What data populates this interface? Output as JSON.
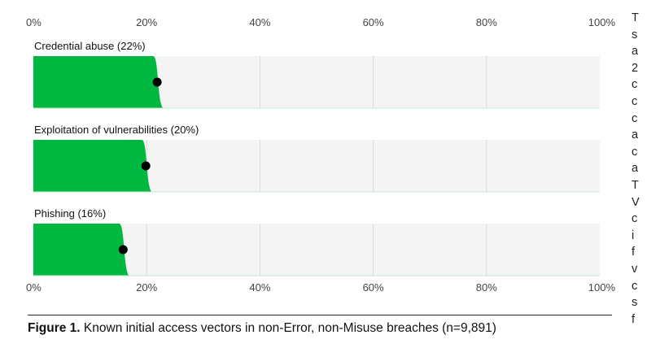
{
  "chart_data": {
    "type": "bar",
    "orientation": "horizontal",
    "categories": [
      "Credential abuse (22%)",
      "Exploitation of vulnerabilities (20%)",
      "Phishing (16%)"
    ],
    "values": [
      22,
      20,
      16
    ],
    "xlim": [
      0,
      100
    ],
    "x_ticks": [
      "0%",
      "20%",
      "40%",
      "60%",
      "80%",
      "100%"
    ],
    "x_tick_values": [
      0,
      20,
      40,
      60,
      80,
      100
    ],
    "grid": true,
    "colors": {
      "bar": "#00b840",
      "track": "#f4f4f4",
      "grid": "#d9d9d9",
      "point": "#000000"
    }
  },
  "caption": {
    "label": "Figure 1.",
    "text": " Known initial access vectors in non-Error, non-Misuse breaches (n=9,891)"
  },
  "side_text_glyphs": [
    "T",
    "s",
    "a",
    "2",
    "c",
    "c",
    "c",
    "a",
    "c",
    "a",
    "T",
    "V",
    "c",
    "i",
    "f",
    "v",
    "c",
    "s",
    "f"
  ]
}
